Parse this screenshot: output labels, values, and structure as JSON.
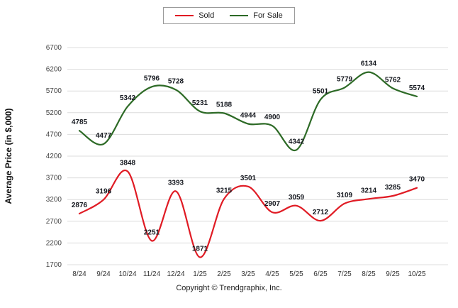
{
  "footer": {
    "copyright": "Copyright © Trendgraphix, Inc."
  },
  "chart_data": {
    "type": "line",
    "title": "",
    "xlabel": "",
    "ylabel": "Average Price (in $,000)",
    "ylim": [
      1700,
      6700
    ],
    "yticks": [
      1700,
      2200,
      2700,
      3200,
      3700,
      4200,
      4700,
      5200,
      5700,
      6200,
      6700
    ],
    "grid": true,
    "legend_position": "top-center",
    "line_style": "smooth",
    "categories": [
      "8/24",
      "9/24",
      "10/24",
      "11/24",
      "12/24",
      "1/25",
      "2/25",
      "3/25",
      "4/25",
      "5/25",
      "6/25",
      "7/25",
      "8/25",
      "9/25",
      "10/25"
    ],
    "series": [
      {
        "name": "Sold",
        "color": "#e01b24",
        "values": [
          2876,
          3196,
          3848,
          2251,
          3393,
          1871,
          3215,
          3501,
          2907,
          3059,
          2712,
          3109,
          3214,
          3285,
          3470
        ]
      },
      {
        "name": "For Sale",
        "color": "#2d6a26",
        "values": [
          4785,
          4477,
          5342,
          5796,
          5728,
          5231,
          5188,
          4944,
          4900,
          4342,
          5501,
          5779,
          6134,
          5762,
          5574
        ]
      }
    ]
  }
}
